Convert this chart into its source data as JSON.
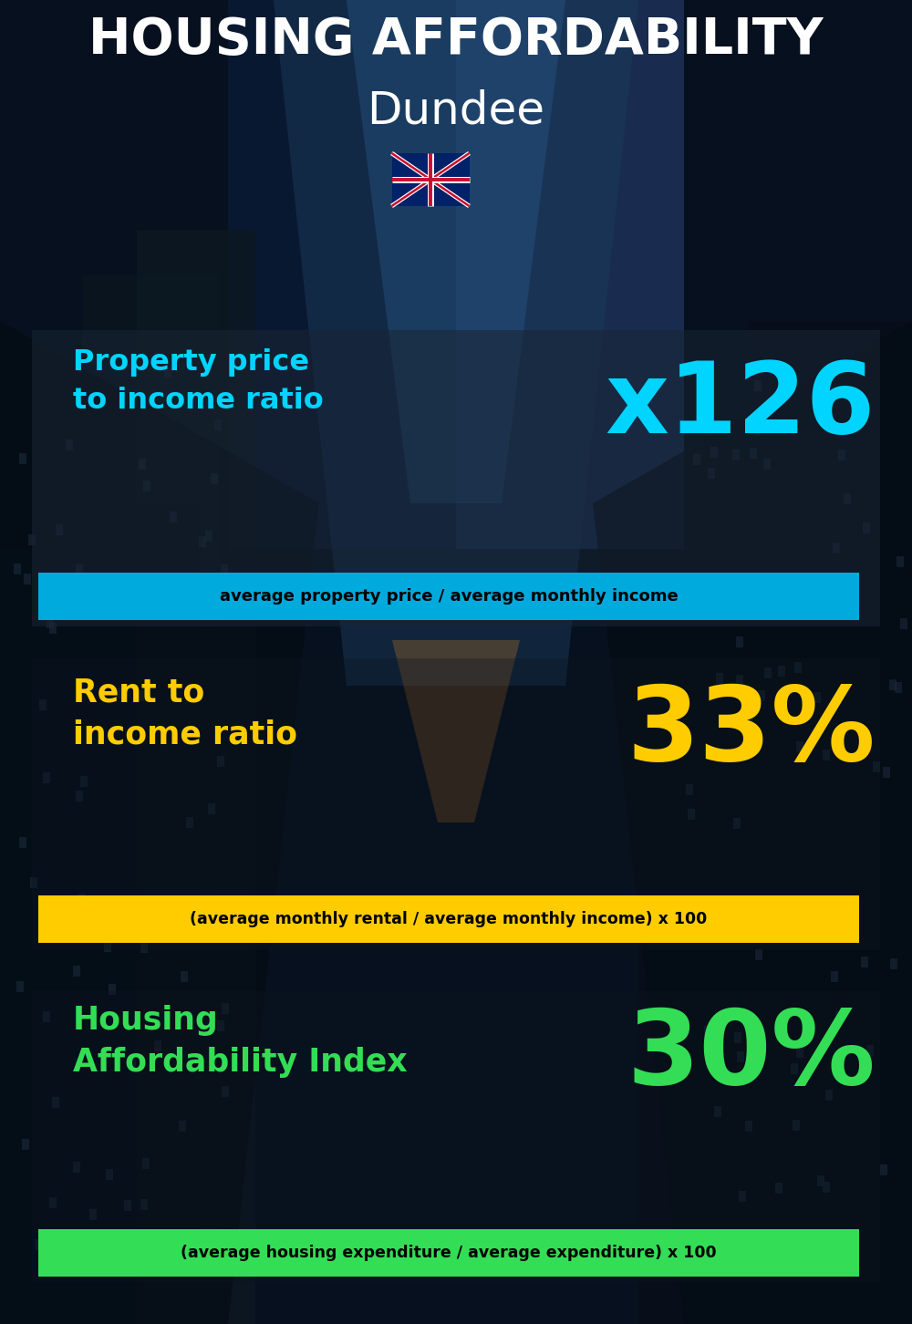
{
  "title_line1": "HOUSING AFFORDABILITY",
  "title_line2": "Dundee",
  "section1_label": "Property price\nto income ratio",
  "section1_value": "x126",
  "section1_sub": "average property price / average monthly income",
  "section1_label_color": "#00d4ff",
  "section1_value_color": "#00d4ff",
  "section1_sub_bg": "#00aadd",
  "section2_label": "Rent to\nincome ratio",
  "section2_value": "33%",
  "section2_sub": "(average monthly rental / average monthly income) x 100",
  "section2_label_color": "#ffcc00",
  "section2_value_color": "#ffcc00",
  "section2_sub_bg": "#ffcc00",
  "section3_label": "Housing\nAffordability Index",
  "section3_value": "30%",
  "section3_sub": "(average housing expenditure / average expenditure) x 100",
  "section3_label_color": "#33dd55",
  "section3_value_color": "#33dd55",
  "section3_sub_bg": "#33dd55",
  "bg_color": "#050d18",
  "title_color": "#ffffff",
  "sub_text_color": "#000000",
  "overlay1_color": "#1a2a3a",
  "overlay2_color": "#0d1a26"
}
